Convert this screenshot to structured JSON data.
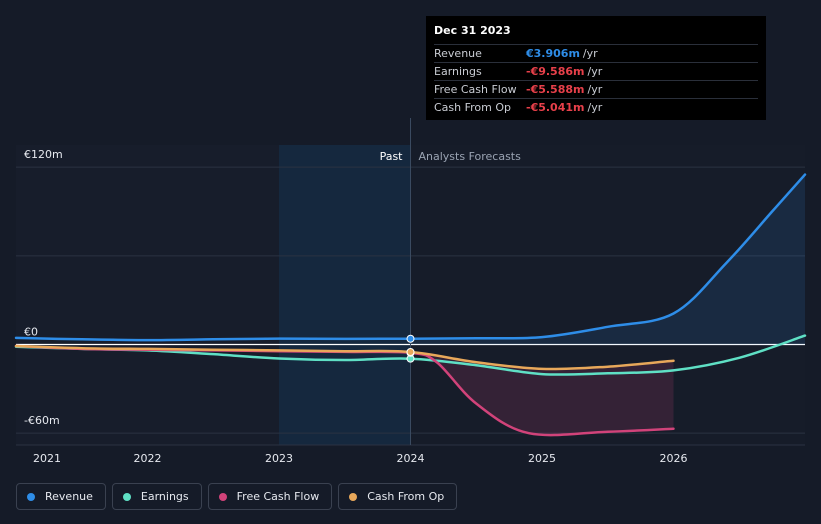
{
  "chart_data": {
    "type": "line",
    "y_tick_labels": [
      "€120m",
      "€0",
      "-€60m"
    ],
    "y_ticks": [
      120,
      0,
      -60
    ],
    "ylim": [
      -68,
      135
    ],
    "xlim": [
      2021.0,
      2027.0
    ],
    "x_ticks": [
      2021,
      2022,
      2023,
      2024,
      2025,
      2026
    ],
    "x_tick_labels": [
      "2021",
      "2022",
      "2023",
      "2024",
      "2025",
      "2026"
    ],
    "past_label": "Past",
    "forecast_label": "Analysts Forecasts",
    "past_region": [
      2023.0,
      2024.0
    ],
    "divider_x": 2024.0,
    "series": [
      {
        "name": "Revenue",
        "color": "#2e8de8",
        "x": [
          2021.0,
          2021.5,
          2022.0,
          2022.5,
          2023.0,
          2023.5,
          2024.0,
          2024.5,
          2025.0,
          2025.5,
          2026.0,
          2026.4,
          2026.75,
          2027.0
        ],
        "values": [
          4.5,
          3.5,
          3.0,
          3.5,
          4.0,
          3.8,
          3.9,
          4.2,
          5.0,
          12.0,
          21.0,
          55.0,
          90.0,
          115.0
        ],
        "fill": true
      },
      {
        "name": "Earnings",
        "color": "#5fe0c5",
        "x": [
          2021.0,
          2021.5,
          2022.0,
          2022.5,
          2023.0,
          2023.5,
          2024.0,
          2024.5,
          2025.0,
          2025.5,
          2026.0,
          2026.5,
          2027.0
        ],
        "values": [
          -1.5,
          -3.0,
          -4.0,
          -6.5,
          -9.5,
          -10.5,
          -9.586,
          -14.0,
          -20.0,
          -19.5,
          -17.5,
          -9.0,
          6.0
        ]
      },
      {
        "name": "Free Cash Flow",
        "color": "#d1437a",
        "x": [
          2021.0,
          2021.5,
          2022.0,
          2022.5,
          2023.0,
          2023.5,
          2024.0,
          2024.2,
          2024.5,
          2024.9,
          2025.5,
          2026.0
        ],
        "values": [
          -1.0,
          -3.0,
          -3.5,
          -4.0,
          -4.5,
          -5.0,
          -5.588,
          -12.0,
          -40.0,
          -60.0,
          -59.0,
          -57.0
        ],
        "fill_to": "Cash From Op"
      },
      {
        "name": "Cash From Op",
        "color": "#e8a85a",
        "x": [
          2021.0,
          2021.5,
          2022.0,
          2022.5,
          2023.0,
          2023.5,
          2024.0,
          2024.5,
          2025.0,
          2025.5,
          2026.0
        ],
        "values": [
          -1.0,
          -2.5,
          -3.0,
          -3.5,
          -4.0,
          -4.5,
          -5.041,
          -12.0,
          -16.5,
          -15.0,
          -11.0
        ]
      }
    ]
  },
  "tooltip": {
    "date": "Dec 31 2023",
    "rows": [
      {
        "name": "Revenue",
        "value": "€3.906m",
        "unit": "/yr",
        "color": "#2e8de8"
      },
      {
        "name": "Earnings",
        "value": "-€9.586m",
        "unit": "/yr",
        "color": "#e8404a"
      },
      {
        "name": "Free Cash Flow",
        "value": "-€5.588m",
        "unit": "/yr",
        "color": "#e8404a"
      },
      {
        "name": "Cash From Op",
        "value": "-€5.041m",
        "unit": "/yr",
        "color": "#e8404a"
      }
    ]
  },
  "legend": {
    "items": [
      {
        "label": "Revenue",
        "color": "#2e8de8"
      },
      {
        "label": "Earnings",
        "color": "#5fe0c5"
      },
      {
        "label": "Free Cash Flow",
        "color": "#d1437a"
      },
      {
        "label": "Cash From Op",
        "color": "#e8a85a"
      }
    ]
  }
}
